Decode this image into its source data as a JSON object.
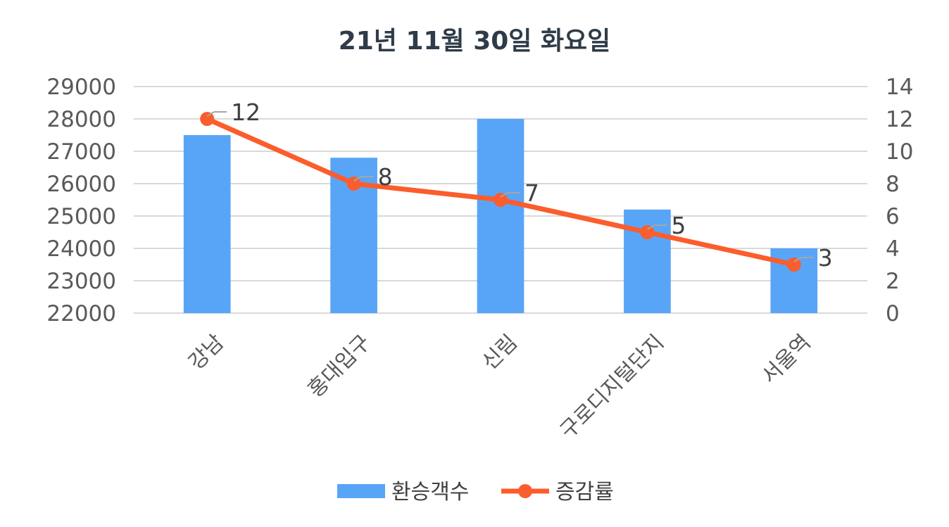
{
  "chart_data": {
    "type": "bar",
    "title": "21년 11월 30일 화요일",
    "categories": [
      "강남",
      "홍대입구",
      "신림",
      "구로디지털단지",
      "서울역"
    ],
    "series": [
      {
        "name": "환승객수",
        "type": "bar",
        "axis": "left",
        "color": "#58a5f8",
        "values": [
          27500,
          26800,
          28000,
          25200,
          24000
        ]
      },
      {
        "name": "증감률",
        "type": "line",
        "axis": "right",
        "color": "#fb5d2c",
        "values": [
          12,
          8,
          7,
          5,
          3
        ],
        "data_labels": [
          "12",
          "8",
          "7",
          "5",
          "3"
        ]
      }
    ],
    "y_left": {
      "ylim": [
        22000,
        29000
      ],
      "ticks": [
        "22000",
        "23000",
        "24000",
        "25000",
        "26000",
        "27000",
        "28000",
        "29000"
      ]
    },
    "y_right": {
      "ylim": [
        0,
        14
      ],
      "ticks": [
        "0",
        "2",
        "4",
        "6",
        "8",
        "10",
        "12",
        "14"
      ]
    },
    "grid": true,
    "legend_position": "bottom",
    "xlabel": "",
    "ylabel": ""
  }
}
